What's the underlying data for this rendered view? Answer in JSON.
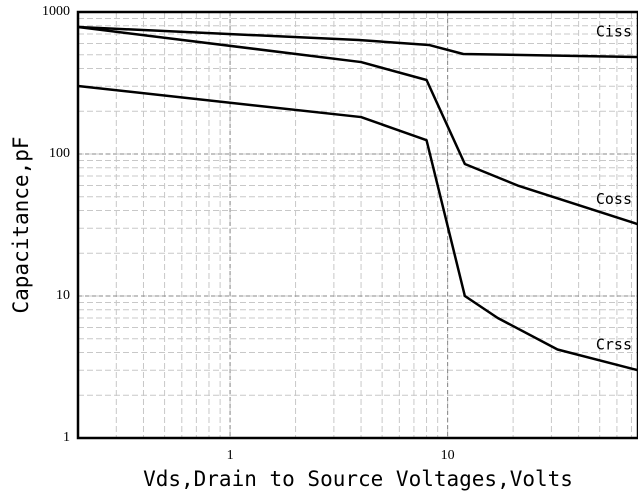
{
  "chart_data": {
    "type": "line",
    "x_label": "Vds,Drain to Source Voltages,Volts",
    "y_label": "Capacitance,pF",
    "xscale": "log",
    "yscale": "log",
    "grid": true,
    "xlim": [
      0.2,
      75
    ],
    "ylim": [
      1,
      1000
    ],
    "xticks": [
      1,
      10
    ],
    "yticks": [
      1,
      10,
      100,
      1000
    ],
    "series": [
      {
        "name": "Ciss",
        "color": "#000000",
        "x": [
          0.2,
          3.9,
          8.2,
          11.8,
          75
        ],
        "values": [
          784,
          635,
          586,
          506,
          482
        ]
      },
      {
        "name": "Coss",
        "color": "#000000",
        "x": [
          0.2,
          4,
          8,
          12,
          21,
          75
        ],
        "values": [
          784,
          444,
          332,
          85,
          60,
          32
        ]
      },
      {
        "name": "Crss",
        "color": "#000000",
        "x": [
          0.2,
          4,
          8,
          12,
          17,
          32,
          75
        ],
        "values": [
          301,
          182,
          125,
          10,
          7,
          4.2,
          3.0
        ]
      }
    ]
  }
}
